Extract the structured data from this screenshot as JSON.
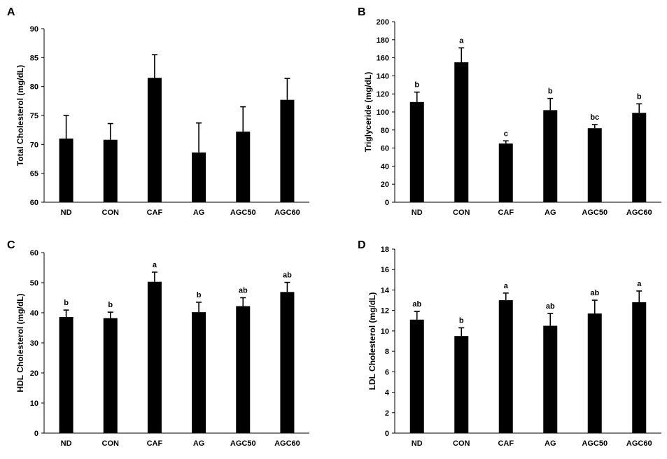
{
  "chart_data": [
    {
      "panel": "A",
      "type": "bar",
      "categories": [
        "ND",
        "CON",
        "CAF",
        "AG",
        "AGC50",
        "AGC60"
      ],
      "values": [
        71.0,
        70.8,
        81.5,
        68.6,
        72.2,
        77.7
      ],
      "errors": [
        4.0,
        2.8,
        4.0,
        5.1,
        4.3,
        3.7
      ],
      "significance": [
        "",
        "",
        "",
        "",
        "",
        ""
      ],
      "xlabel": "",
      "ylabel": "Total Cholesterol (mg/dL)",
      "ylim": [
        60,
        90
      ],
      "yticks": [
        60,
        65,
        70,
        75,
        80,
        85,
        90
      ],
      "grid": false,
      "bar_color": "#000000"
    },
    {
      "panel": "B",
      "type": "bar",
      "categories": [
        "ND",
        "CON",
        "CAF",
        "AG",
        "AGC50",
        "AGC60"
      ],
      "values": [
        111,
        155,
        65,
        102,
        82,
        99
      ],
      "errors": [
        11,
        16,
        3,
        13,
        4,
        10
      ],
      "significance": [
        "b",
        "a",
        "c",
        "b",
        "bc",
        "b"
      ],
      "xlabel": "",
      "ylabel": "Triglyceride  (mg/dL)",
      "ylim": [
        0,
        200
      ],
      "yticks": [
        0,
        20,
        40,
        60,
        80,
        100,
        120,
        140,
        160,
        180,
        200
      ],
      "grid": false,
      "bar_color": "#000000"
    },
    {
      "panel": "C",
      "type": "bar",
      "categories": [
        "ND",
        "CON",
        "CAF",
        "AG",
        "AGC50",
        "AGC60"
      ],
      "values": [
        38.6,
        38.2,
        50.3,
        40.2,
        42.2,
        46.9
      ],
      "errors": [
        2.3,
        2.0,
        3.2,
        3.3,
        2.8,
        3.2
      ],
      "significance": [
        "b",
        "b",
        "a",
        "b",
        "ab",
        "ab"
      ],
      "xlabel": "",
      "ylabel": "HDL Cholesterol (mg/dL)",
      "ylim": [
        0,
        60
      ],
      "yticks": [
        0,
        10,
        20,
        30,
        40,
        50,
        60
      ],
      "grid": false,
      "bar_color": "#000000"
    },
    {
      "panel": "D",
      "type": "bar",
      "categories": [
        "ND",
        "CON",
        "CAF",
        "AG",
        "AGC50",
        "AGC60"
      ],
      "values": [
        11.1,
        9.5,
        13.0,
        10.5,
        11.7,
        12.8
      ],
      "errors": [
        0.8,
        0.8,
        0.7,
        1.2,
        1.3,
        1.1
      ],
      "significance": [
        "ab",
        "b",
        "a",
        "ab",
        "ab",
        "a"
      ],
      "xlabel": "",
      "ylabel": "LDL Cholesterol (mg/dL)",
      "ylim": [
        0,
        18
      ],
      "yticks": [
        0,
        2,
        4,
        6,
        8,
        10,
        12,
        14,
        16,
        18
      ],
      "grid": false,
      "bar_color": "#000000"
    }
  ]
}
